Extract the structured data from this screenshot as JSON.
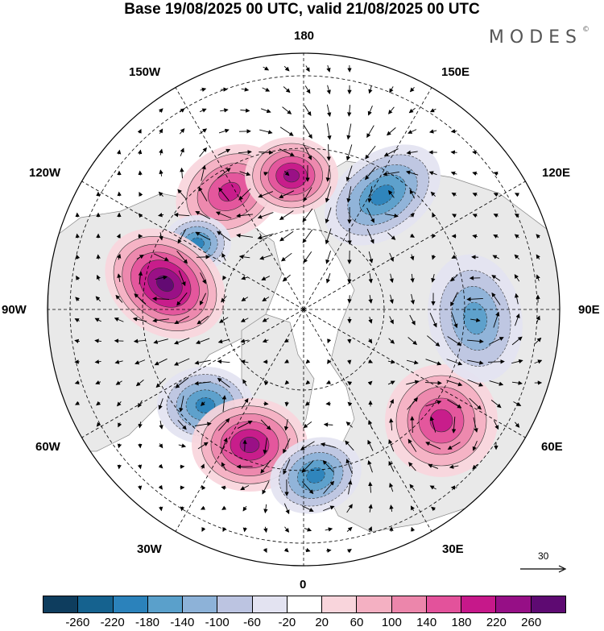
{
  "header": {
    "title": "Base 19/08/2025 00 UTC, valid 21/08/2025 00 UTC",
    "logo": "MODES",
    "logo_mark": "©"
  },
  "map": {
    "projection": "north polar stereographic",
    "longitude_labels": {
      "top": "180",
      "bottom": "0",
      "left": "90W",
      "right": "90E",
      "upper_left": "150W",
      "upper_right": "150E",
      "mid_left": "120W",
      "mid_right": "120E",
      "lower_left": "60W",
      "lower_right": "60E",
      "bottom_left": "30W",
      "bottom_right": "30E"
    },
    "anomaly_centers": [
      {
        "name": "positive-alaska",
        "sign": "+",
        "level": 160
      },
      {
        "name": "negative-west-pacific",
        "sign": "-",
        "level": 160
      },
      {
        "name": "positive-east-siberia",
        "sign": "+",
        "level": 200
      },
      {
        "name": "negative-beaufort",
        "sign": "-",
        "level": 140
      },
      {
        "name": "positive-north-america",
        "sign": "+",
        "level": 220
      },
      {
        "name": "negative-labrador",
        "sign": "-",
        "level": 140
      },
      {
        "name": "positive-north-atlantic",
        "sign": "+",
        "level": 180
      },
      {
        "name": "negative-scandinavia",
        "sign": "-",
        "level": 140
      },
      {
        "name": "positive-west-siberia",
        "sign": "+",
        "level": 140
      },
      {
        "name": "negative-central-siberia",
        "sign": "-",
        "level": 100
      }
    ],
    "reference_vector": "30"
  },
  "colorbar": {
    "colors": [
      "#0e3d5e",
      "#15628f",
      "#2b82bb",
      "#5aa0cb",
      "#8db2d8",
      "#bcc4e1",
      "#e3e3f1",
      "#ffffff",
      "#f9d5dc",
      "#f4b0c2",
      "#ec86ab",
      "#e3529b",
      "#c6188a",
      "#960f86",
      "#5e0a72"
    ],
    "ticks": [
      "-260",
      "-220",
      "-180",
      "-140",
      "-100",
      "-60",
      "-20",
      "20",
      "60",
      "100",
      "140",
      "180",
      "220",
      "260"
    ]
  }
}
